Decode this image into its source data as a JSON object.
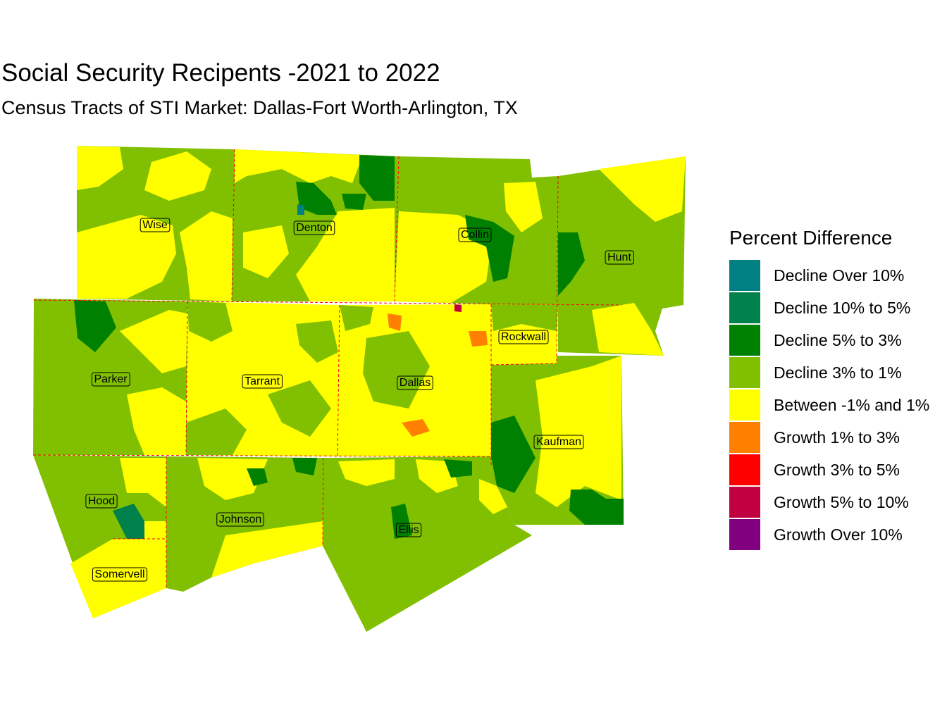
{
  "title": "Social Security Recipents -2021 to 2022",
  "subtitle": "Census Tracts of STI Market: Dallas-Fort Worth-Arlington, TX",
  "colors": {
    "decline_3_1": "#80c000",
    "between": "#ffff00",
    "decline_5_3": "#008000",
    "growth_1_3": "#ff8000",
    "county_border": "#ff0000"
  },
  "counties": [
    {
      "id": "wise",
      "name": "Wise"
    },
    {
      "id": "denton",
      "name": "Denton"
    },
    {
      "id": "collin",
      "name": "Collin"
    },
    {
      "id": "hunt",
      "name": "Hunt"
    },
    {
      "id": "rockwall",
      "name": "Rockwall"
    },
    {
      "id": "parker",
      "name": "Parker"
    },
    {
      "id": "tarrant",
      "name": "Tarrant"
    },
    {
      "id": "dallas",
      "name": "Dallas"
    },
    {
      "id": "kaufman",
      "name": "Kaufman"
    },
    {
      "id": "hood",
      "name": "Hood"
    },
    {
      "id": "johnson",
      "name": "Johnson"
    },
    {
      "id": "ellis",
      "name": "Ellis"
    },
    {
      "id": "somervell",
      "name": "Somervell"
    }
  ],
  "legend": {
    "title": "Percent Difference",
    "items": [
      {
        "label": "Decline Over 10%",
        "color": "#008080"
      },
      {
        "label": "Decline 10% to 5%",
        "color": "#00804a"
      },
      {
        "label": "Decline 5% to 3%",
        "color": "#008000"
      },
      {
        "label": "Decline 3% to 1%",
        "color": "#80c000"
      },
      {
        "label": "Between -1% and 1%",
        "color": "#ffff00"
      },
      {
        "label": "Growth 1% to 3%",
        "color": "#ff8000"
      },
      {
        "label": "Growth 3% to 5%",
        "color": "#ff0000"
      },
      {
        "label": "Growth 5% to 10%",
        "color": "#c00040"
      },
      {
        "label": "Growth Over 10%",
        "color": "#800080"
      }
    ]
  }
}
